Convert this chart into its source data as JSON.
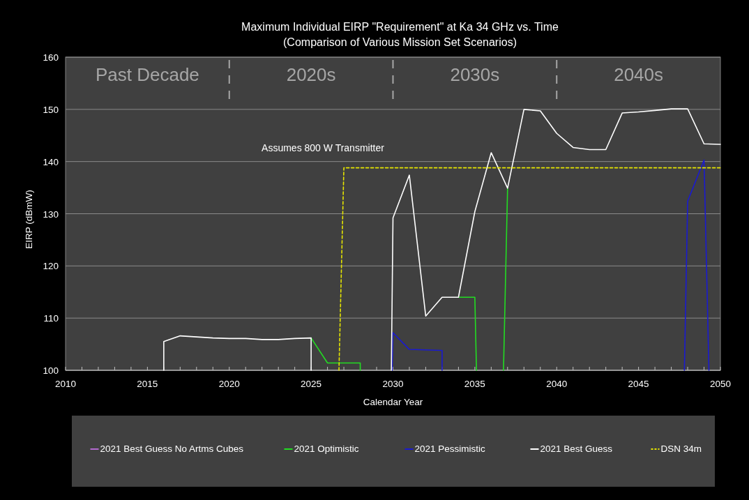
{
  "chart_data": {
    "type": "line",
    "title": "Maximum Individual EIRP \"Requirement\" at Ka 34 GHz vs. Time",
    "subtitle": "(Comparison of Various Mission Set Scenarios)",
    "xlabel": "Calendar Year",
    "ylabel": "EIRP (dBmW)",
    "series": [
      {
        "name": "2021 Best Guess No Artms Cubes",
        "color": "#b36ad0"
      },
      {
        "name": "2021 Optimistic",
        "color": "#22dd22",
        "x": [
          2025,
          2026,
          2027,
          2028,
          2028,
          null,
          2034,
          2035,
          2035.1,
          null,
          2036.75,
          2037
        ],
        "values": [
          106.2,
          101.4,
          101.4,
          101.4,
          100,
          null,
          114,
          114,
          100,
          null,
          100,
          134.9
        ]
      },
      {
        "name": "2021 Pessimistic",
        "color": "#1a1ad0",
        "x": [
          2029.95,
          2030,
          2031,
          2032,
          2033,
          2033,
          null,
          2047.8,
          2048,
          2049,
          2049.3
        ],
        "values": [
          100,
          107.2,
          104.0,
          103.9,
          103.8,
          100,
          null,
          100,
          132.4,
          140.3,
          100
        ]
      },
      {
        "name": "2021 Best Guess",
        "color": "#ffffff",
        "x": [
          2016,
          2016,
          2017,
          2018,
          2019,
          2020,
          2021,
          2022,
          2023,
          2024,
          2025,
          2025,
          null,
          2029.9,
          2030,
          2031,
          2032,
          2033,
          2034,
          2035,
          2036,
          2037,
          2038,
          2039,
          2040,
          2041,
          2042,
          2043,
          2044,
          2045,
          2046,
          2047,
          2048,
          2049,
          2050
        ],
        "values": [
          100,
          105.5,
          106.6,
          106.4,
          106.2,
          106.1,
          106.1,
          105.9,
          105.9,
          106.1,
          106.2,
          100,
          null,
          100,
          129.2,
          137.4,
          110.4,
          114.0,
          114.0,
          130.4,
          141.7,
          134.9,
          150.0,
          149.7,
          145.4,
          142.7,
          142.3,
          142.3,
          149.3,
          149.5,
          149.8,
          150.1,
          150.1,
          143.4,
          143.3
        ]
      },
      {
        "name": "DSN 34m",
        "color": "#e6e600",
        "line_style": "dashed",
        "x": [
          2026.7,
          2027,
          2050
        ],
        "values": [
          100,
          138.8,
          138.8
        ]
      }
    ],
    "xlim": [
      2010,
      2050
    ],
    "xticks": [
      2010,
      {
        "value": 2011,
        "label": null
      },
      {
        "value": 2012,
        "label": null
      },
      {
        "value": 2013,
        "label": null
      },
      {
        "value": 2014,
        "label": null
      },
      2015,
      {
        "value": 2016,
        "label": null
      },
      {
        "value": 2017,
        "label": null
      },
      {
        "value": 2018,
        "label": null
      },
      {
        "value": 2019,
        "label": null
      },
      2020,
      {
        "value": 2021,
        "label": null
      },
      {
        "value": 2022,
        "label": null
      },
      {
        "value": 2023,
        "label": null
      },
      {
        "value": 2024,
        "label": null
      },
      2025,
      {
        "value": 2026,
        "label": null
      },
      {
        "value": 2027,
        "label": null
      },
      {
        "value": 2028,
        "label": null
      },
      {
        "value": 2029,
        "label": null
      },
      2030,
      {
        "value": 2031,
        "label": null
      },
      {
        "value": 2032,
        "label": null
      },
      {
        "value": 2033,
        "label": null
      },
      {
        "value": 2034,
        "label": null
      },
      2035,
      {
        "value": 2036,
        "label": null
      },
      {
        "value": 2037,
        "label": null
      },
      {
        "value": 2038,
        "label": null
      },
      {
        "value": 2039,
        "label": null
      },
      2040,
      {
        "value": 2041,
        "label": null
      },
      {
        "value": 2042,
        "label": null
      },
      {
        "value": 2043,
        "label": null
      },
      {
        "value": 2044,
        "label": null
      },
      2045,
      {
        "value": 2046,
        "label": null
      },
      {
        "value": 2047,
        "label": null
      },
      {
        "value": 2048,
        "label": null
      },
      {
        "value": 2049,
        "label": null
      },
      2050
    ],
    "ylim": [
      100,
      160
    ],
    "yticks": [
      100,
      110,
      120,
      130,
      140,
      150,
      160
    ],
    "grid": "y",
    "legend": "bottom",
    "marker": "none",
    "line_style": "solid",
    "ref_lines": [
      {
        "axis": "x",
        "value": 2020,
        "color": "#a6a6a6",
        "line_style": "dashed"
      },
      {
        "axis": "x",
        "value": 2030,
        "color": "#a6a6a6",
        "line_style": "dashed"
      },
      {
        "axis": "x",
        "value": 2040,
        "color": "#a6a6a6",
        "line_style": "dashed"
      }
    ],
    "annotations": [
      "Past Decade",
      "2020s",
      "2030s",
      "2040s",
      "Assumes 800 W Transmitter"
    ]
  }
}
